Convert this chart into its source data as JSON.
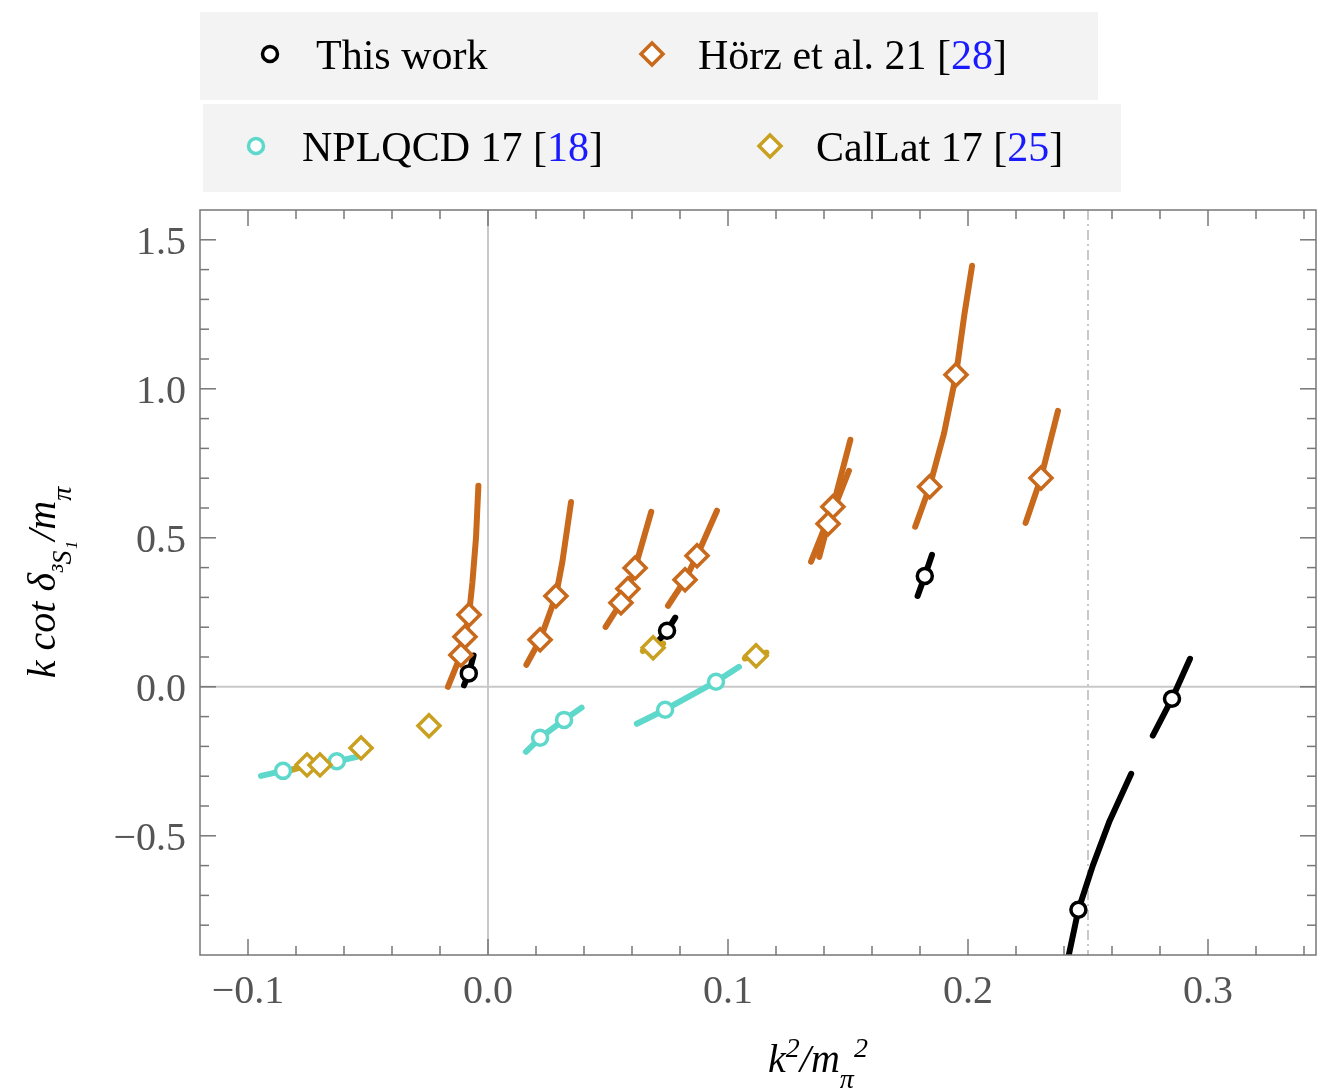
{
  "chart_data": {
    "type": "scatter",
    "xlabel": "k$^{2}$/m$_{π}$$^{2}$",
    "ylabel": "k cot δ$_{³S₁}$/m$_{π}$",
    "xlim": [
      -0.12,
      0.345
    ],
    "ylim": [
      -0.9,
      1.6
    ],
    "xticks": [
      {
        "value": -0.1,
        "label": "−0.1"
      },
      {
        "value": -0.08,
        "label": null
      },
      {
        "value": -0.06,
        "label": null
      },
      {
        "value": -0.04,
        "label": null
      },
      {
        "value": -0.02,
        "label": null
      },
      {
        "value": 0,
        "label": "0.0"
      },
      {
        "value": 0.02,
        "label": null
      },
      {
        "value": 0.04,
        "label": null
      },
      {
        "value": 0.06,
        "label": null
      },
      {
        "value": 0.08,
        "label": null
      },
      {
        "value": 0.1,
        "label": "0.1"
      },
      {
        "value": 0.12,
        "label": null
      },
      {
        "value": 0.14,
        "label": null
      },
      {
        "value": 0.16,
        "label": null
      },
      {
        "value": 0.18,
        "label": null
      },
      {
        "value": 0.2,
        "label": "0.2"
      },
      {
        "value": 0.22,
        "label": null
      },
      {
        "value": 0.24,
        "label": null
      },
      {
        "value": 0.26,
        "label": null
      },
      {
        "value": 0.28,
        "label": null
      },
      {
        "value": 0.3,
        "label": "0.3"
      },
      {
        "value": 0.32,
        "label": null
      },
      {
        "value": 0.34,
        "label": null
      }
    ],
    "yticks": [
      {
        "value": -0.8,
        "label": null
      },
      {
        "value": -0.7,
        "label": null
      },
      {
        "value": -0.6,
        "label": null
      },
      {
        "value": -0.5,
        "label": "−0.5"
      },
      {
        "value": -0.4,
        "label": null
      },
      {
        "value": -0.3,
        "label": null
      },
      {
        "value": -0.2,
        "label": null
      },
      {
        "value": -0.1,
        "label": null
      },
      {
        "value": 0,
        "label": "0.0"
      },
      {
        "value": 0.1,
        "label": null
      },
      {
        "value": 0.2,
        "label": null
      },
      {
        "value": 0.3,
        "label": null
      },
      {
        "value": 0.4,
        "label": null
      },
      {
        "value": 0.5,
        "label": "0.5"
      },
      {
        "value": 0.6,
        "label": null
      },
      {
        "value": 0.7,
        "label": null
      },
      {
        "value": 0.8,
        "label": null
      },
      {
        "value": 0.9,
        "label": null
      },
      {
        "value": 1.0,
        "label": "1.0"
      },
      {
        "value": 1.1,
        "label": null
      },
      {
        "value": 1.2,
        "label": null
      },
      {
        "value": 1.3,
        "label": null
      },
      {
        "value": 1.4,
        "label": null
      },
      {
        "value": 1.5,
        "label": "1.5"
      }
    ],
    "legend": "top",
    "ref_lines": [
      {
        "axis": "x",
        "value": 0,
        "color": "#c8c8c8",
        "line_style": "solid"
      },
      {
        "axis": "y",
        "value": 0,
        "color": "#c8c8c8",
        "line_style": "solid"
      },
      {
        "axis": "x",
        "value": 0.25,
        "color": "#c8c8c8",
        "line_style": "dashdot"
      }
    ],
    "series": [
      {
        "type": "line",
        "color": "#000000",
        "marker": "none",
        "x": [
          -0.01,
          -0.008,
          -0.006
        ],
        "values": [
          0.005,
          0.045,
          0.105
        ]
      },
      {
        "type": "line",
        "color": "#000000",
        "marker": "none",
        "x": [
          0.071,
          0.0746,
          0.078
        ],
        "values": [
          0.154,
          0.188,
          0.232
        ]
      },
      {
        "type": "line",
        "color": "#000000",
        "marker": "none",
        "x": [
          0.179,
          0.182,
          0.185
        ],
        "values": [
          0.305,
          0.372,
          0.443
        ]
      },
      {
        "type": "line",
        "color": "#000000",
        "marker": "none",
        "x": [
          0.242,
          0.246,
          0.252,
          0.259,
          0.268
        ],
        "values": [
          -0.9,
          -0.748,
          -0.6,
          -0.45,
          -0.292
        ]
      },
      {
        "type": "line",
        "color": "#000000",
        "marker": "none",
        "x": [
          0.277,
          0.285,
          0.2925
        ],
        "values": [
          -0.164,
          -0.04,
          0.094
        ]
      },
      {
        "type": "line",
        "color": "#c8691c",
        "marker": "none",
        "x": [
          -0.0167,
          -0.0113,
          -0.0096,
          -0.0079,
          -0.0065,
          -0.005,
          -0.004
        ],
        "values": [
          0.0,
          0.107,
          0.168,
          0.242,
          0.35,
          0.5,
          0.675
        ]
      },
      {
        "type": "line",
        "color": "#c8691c",
        "marker": "none",
        "x": [
          0.016,
          0.0217,
          0.0283,
          0.031,
          0.0346
        ],
        "values": [
          0.074,
          0.158,
          0.305,
          0.42,
          0.62
        ]
      },
      {
        "type": "line",
        "color": "#c8691c",
        "marker": "none",
        "x": [
          0.049,
          0.0554,
          0.0583,
          0.0613,
          0.068
        ],
        "values": [
          0.201,
          0.282,
          0.329,
          0.399,
          0.587
        ]
      },
      {
        "type": "line",
        "color": "#c8691c",
        "marker": "none",
        "x": [
          0.075,
          0.0821,
          0.0871,
          0.0954
        ],
        "values": [
          0.272,
          0.359,
          0.44,
          0.591
        ]
      },
      {
        "type": "line",
        "color": "#c8691c",
        "marker": "none",
        "x": [
          0.1346,
          0.1437,
          0.151
        ],
        "values": [
          0.42,
          0.604,
          0.829
        ]
      },
      {
        "type": "line",
        "color": "#c8691c",
        "marker": "none",
        "x": [
          0.138,
          0.1417,
          0.1504
        ],
        "values": [
          0.436,
          0.547,
          0.725
        ]
      },
      {
        "type": "line",
        "color": "#c8691c",
        "marker": "none",
        "x": [
          0.178,
          0.184,
          0.19,
          0.195,
          0.1985,
          0.2017
        ],
        "values": [
          0.537,
          0.671,
          0.85,
          1.047,
          1.25,
          1.413
        ]
      },
      {
        "type": "line",
        "color": "#c8691c",
        "marker": "none",
        "x": [
          0.224,
          0.2304,
          0.2375
        ],
        "values": [
          0.55,
          0.701,
          0.926
        ]
      },
      {
        "type": "line",
        "color": "#5dd8cb",
        "marker": "none",
        "x": [
          -0.0946,
          -0.0854,
          -0.063,
          -0.0546
        ],
        "values": [
          -0.299,
          -0.282,
          -0.25,
          -0.235
        ]
      },
      {
        "type": "line",
        "color": "#5dd8cb",
        "marker": "none",
        "x": [
          0.0158,
          0.0217,
          0.0317,
          0.039
        ],
        "values": [
          -0.218,
          -0.171,
          -0.111,
          -0.07
        ]
      },
      {
        "type": "line",
        "color": "#5dd8cb",
        "marker": "none",
        "x": [
          0.062,
          0.0738,
          0.095,
          0.1046
        ],
        "values": [
          -0.124,
          -0.077,
          0.017,
          0.067
        ]
      },
      {
        "type": "line",
        "color": "#c9a020",
        "marker": "none",
        "x": [
          -0.0817,
          -0.0754,
          -0.07,
          -0.063
        ],
        "values": [
          -0.279,
          -0.262,
          -0.262,
          -0.248
        ]
      },
      {
        "type": "line",
        "color": "#c9a020",
        "marker": "none",
        "x": [
          0.0645,
          0.073
        ],
        "values": [
          0.12,
          0.145
        ]
      },
      {
        "type": "line",
        "color": "#c9a020",
        "marker": "none",
        "x": [
          0.107,
          0.116
        ],
        "values": [
          0.095,
          0.115
        ]
      },
      {
        "name": "This work",
        "color": "#000000",
        "marker": "circle",
        "x": [
          -0.008,
          0.0746,
          0.182,
          0.246,
          0.285
        ],
        "values": [
          0.045,
          0.188,
          0.372,
          -0.748,
          -0.04
        ]
      },
      {
        "name": "Hörz et al. 21 [28]",
        "color": "#c8691c",
        "marker": "diamond",
        "x": [
          -0.0079,
          -0.0096,
          -0.0113,
          0.0283,
          0.0217,
          0.0613,
          0.0583,
          0.0554,
          0.0871,
          0.0821,
          0.1437,
          0.1417,
          0.195,
          0.184,
          0.2304
        ],
        "values": [
          0.242,
          0.168,
          0.107,
          0.305,
          0.158,
          0.399,
          0.329,
          0.282,
          0.44,
          0.359,
          0.604,
          0.547,
          1.047,
          0.671,
          0.701
        ]
      },
      {
        "name": "NPLQCD 17 [18]",
        "color": "#5dd8cb",
        "marker": "circle",
        "x": [
          -0.0854,
          -0.063,
          0.0217,
          0.0317,
          0.0738,
          0.095
        ],
        "values": [
          -0.282,
          -0.25,
          -0.171,
          -0.111,
          -0.077,
          0.017
        ]
      },
      {
        "name": "CalLat 17 [25]",
        "color": "#c9a020",
        "marker": "diamond",
        "x": [
          -0.0754,
          -0.07,
          -0.0529,
          -0.0246,
          0.0688,
          0.1117
        ],
        "values": [
          -0.262,
          -0.262,
          -0.205,
          -0.131,
          0.131,
          0.104
        ]
      }
    ]
  }
}
